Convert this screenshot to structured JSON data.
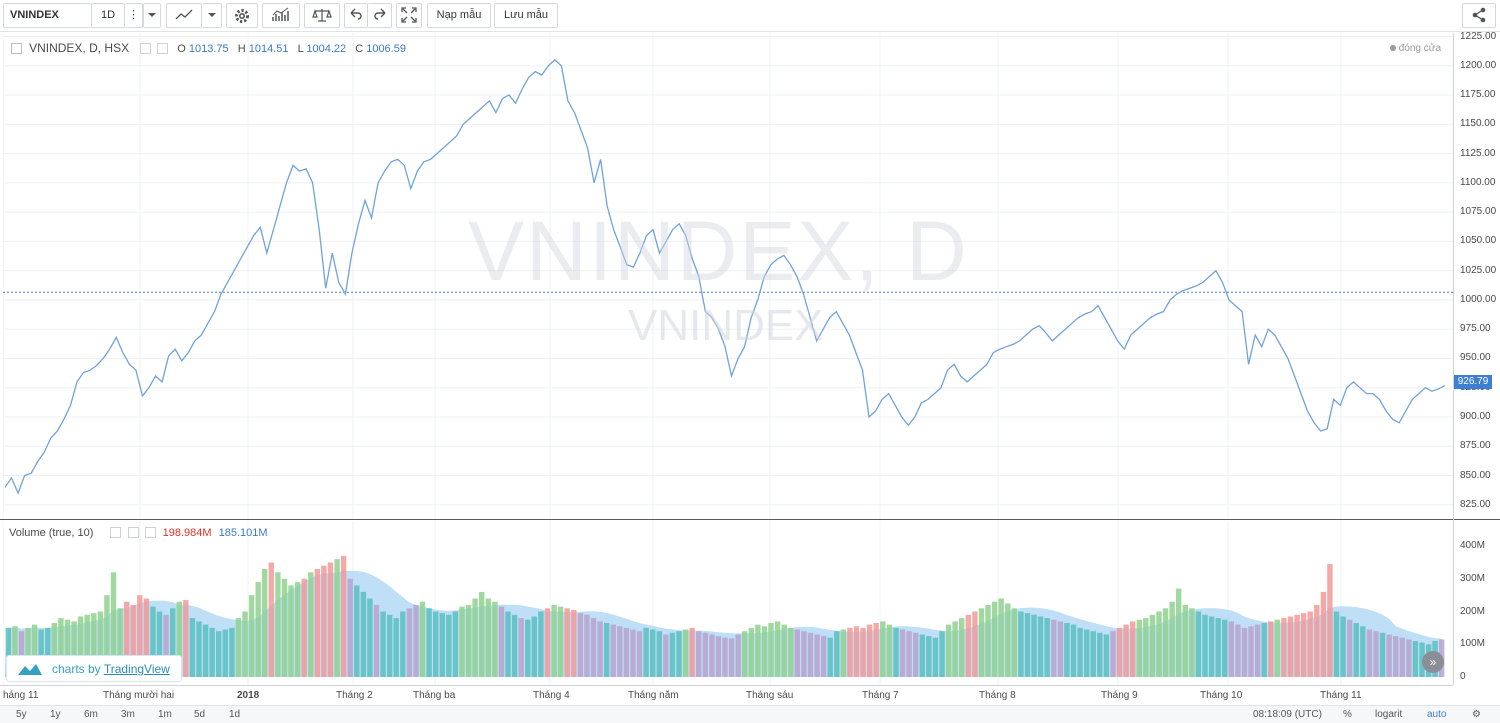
{
  "toolbar": {
    "symbol": "VNINDEX",
    "interval": "1D",
    "load_label": "Nạp mẫu",
    "save_label": "Lưu mẫu"
  },
  "legend": {
    "title": "VNINDEX, D, HSX",
    "open_label": "O",
    "open": "1013.75",
    "high_label": "H",
    "high": "1014.51",
    "low_label": "L",
    "low": "1004.22",
    "close_label": "C",
    "close": "1006.59"
  },
  "close_note": "đóng cửa",
  "watermark": {
    "main": "VNINDEX, D",
    "sub": "VNINDEX"
  },
  "volume_legend": {
    "title": "Volume (true, 10)",
    "volume": "198.984M",
    "ma": "185.101M"
  },
  "price_axis": [
    "1225.00",
    "1200.00",
    "1175.00",
    "1150.00",
    "1125.00",
    "1100.00",
    "1075.00",
    "1050.00",
    "1025.00",
    "1000.00",
    "975.00",
    "950.00",
    "925.00",
    "900.00",
    "875.00",
    "850.00",
    "825.00"
  ],
  "last_price": "926.79",
  "volume_axis": [
    "400M",
    "300M",
    "200M",
    "100M",
    "0"
  ],
  "time_axis": [
    "háng 11",
    "Tháng mười hai",
    "2018",
    "Tháng 2",
    "Tháng ba",
    "Tháng 4",
    "Tháng năm",
    "Tháng sáu",
    "Tháng 7",
    "Tháng 8",
    "Tháng 9",
    "Tháng 10",
    "Tháng 11"
  ],
  "branding": {
    "prefix": "charts by",
    "name": "TradingView"
  },
  "bottom": {
    "ranges": [
      "5y",
      "1y",
      "6m",
      "3m",
      "1m",
      "5d",
      "1d"
    ],
    "time": "08:18:09 (UTC)",
    "percent": "%",
    "log": "logarit",
    "auto": "auto"
  },
  "colors": {
    "line": "#6fa3dc",
    "vol_up": "#8fd18f",
    "vol_down": "#f29a9a",
    "vol_teal": "#5bbfbf",
    "vol_purple": "#b7a3cf",
    "ma_fill": "#a8d4f2",
    "accent": "#3d7fd0"
  },
  "chart_data": {
    "type": "line",
    "title": "VNINDEX, D, HSX",
    "y_range": [
      812,
      1228
    ],
    "reference_line": 1006.59,
    "series": [
      {
        "name": "VNINDEX",
        "x_start": "2017-11",
        "values": [
          840,
          848,
          835,
          850,
          852,
          862,
          870,
          882,
          888,
          898,
          910,
          930,
          938,
          940,
          944,
          950,
          958,
          968,
          955,
          945,
          940,
          918,
          925,
          935,
          930,
          952,
          958,
          948,
          955,
          965,
          970,
          980,
          990,
          1005,
          1015,
          1025,
          1035,
          1045,
          1055,
          1062,
          1040,
          1060,
          1080,
          1100,
          1115,
          1110,
          1112,
          1100,
          1060,
          1010,
          1040,
          1015,
          1005,
          1040,
          1065,
          1085,
          1070,
          1100,
          1110,
          1118,
          1120,
          1115,
          1095,
          1110,
          1118,
          1120,
          1125,
          1130,
          1135,
          1140,
          1150,
          1155,
          1160,
          1165,
          1170,
          1160,
          1172,
          1175,
          1168,
          1180,
          1190,
          1195,
          1192,
          1200,
          1205,
          1200,
          1170,
          1160,
          1145,
          1130,
          1100,
          1120,
          1080,
          1060,
          1045,
          1030,
          1028,
          1040,
          1055,
          1060,
          1040,
          1050,
          1060,
          1065,
          1055,
          1035,
          1020,
          990,
          985,
          975,
          960,
          935,
          950,
          960,
          985,
          1000,
          1020,
          1030,
          1035,
          1038,
          1030,
          1020,
          1005,
          985,
          965,
          975,
          985,
          990,
          980,
          970,
          955,
          940,
          900,
          905,
          915,
          920,
          910,
          900,
          893,
          900,
          912,
          915,
          920,
          925,
          940,
          945,
          935,
          930,
          935,
          940,
          945,
          955,
          958,
          960,
          962,
          965,
          970,
          975,
          978,
          972,
          965,
          970,
          975,
          980,
          985,
          988,
          990,
          995,
          985,
          975,
          965,
          958,
          970,
          975,
          980,
          985,
          988,
          990,
          1000,
          1005,
          1008,
          1010,
          1012,
          1015,
          1020,
          1025,
          1015,
          1000,
          995,
          990,
          945,
          970,
          960,
          975,
          970,
          960,
          950,
          935,
          920,
          905,
          895,
          888,
          890,
          915,
          910,
          925,
          930,
          925,
          920,
          920,
          915,
          905,
          898,
          895,
          905,
          915,
          920,
          925,
          922,
          924,
          926.79
        ]
      }
    ],
    "volume": {
      "unit": "M",
      "y_range": [
        0,
        440
      ],
      "values": [
        150,
        155,
        140,
        150,
        160,
        145,
        150,
        165,
        180,
        175,
        170,
        185,
        190,
        195,
        200,
        250,
        320,
        210,
        230,
        220,
        250,
        240,
        215,
        200,
        190,
        210,
        230,
        235,
        180,
        170,
        160,
        150,
        140,
        145,
        150,
        180,
        200,
        250,
        290,
        330,
        350,
        320,
        300,
        280,
        290,
        300,
        320,
        330,
        340,
        350,
        360,
        370,
        300,
        280,
        260,
        240,
        220,
        200,
        190,
        180,
        200,
        210,
        220,
        230,
        210,
        200,
        195,
        190,
        200,
        215,
        220,
        240,
        260,
        240,
        230,
        215,
        200,
        190,
        180,
        175,
        185,
        200,
        210,
        220,
        215,
        210,
        205,
        195,
        190,
        180,
        170,
        165,
        160,
        155,
        150,
        145,
        140,
        150,
        145,
        140,
        130,
        135,
        140,
        145,
        150,
        140,
        135,
        130,
        125,
        120,
        118,
        130,
        140,
        150,
        160,
        155,
        165,
        170,
        160,
        150,
        145,
        140,
        135,
        130,
        125,
        120,
        140,
        145,
        150,
        155,
        150,
        160,
        165,
        170,
        160,
        150,
        145,
        140,
        135,
        130,
        125,
        120,
        140,
        160,
        170,
        180,
        190,
        200,
        210,
        220,
        230,
        240,
        225,
        210,
        200,
        195,
        190,
        185,
        180,
        175,
        170,
        165,
        160,
        150,
        145,
        140,
        135,
        130,
        140,
        150,
        160,
        170,
        175,
        180,
        190,
        200,
        210,
        230,
        270,
        220,
        210,
        200,
        190,
        185,
        180,
        175,
        170,
        160,
        150,
        155,
        160,
        165,
        170,
        175,
        180,
        185,
        190,
        195,
        200,
        220,
        260,
        345,
        200,
        185,
        175,
        165,
        155,
        145,
        140,
        135,
        130,
        125,
        120,
        115,
        110,
        105,
        100,
        110,
        115
      ]
    }
  }
}
